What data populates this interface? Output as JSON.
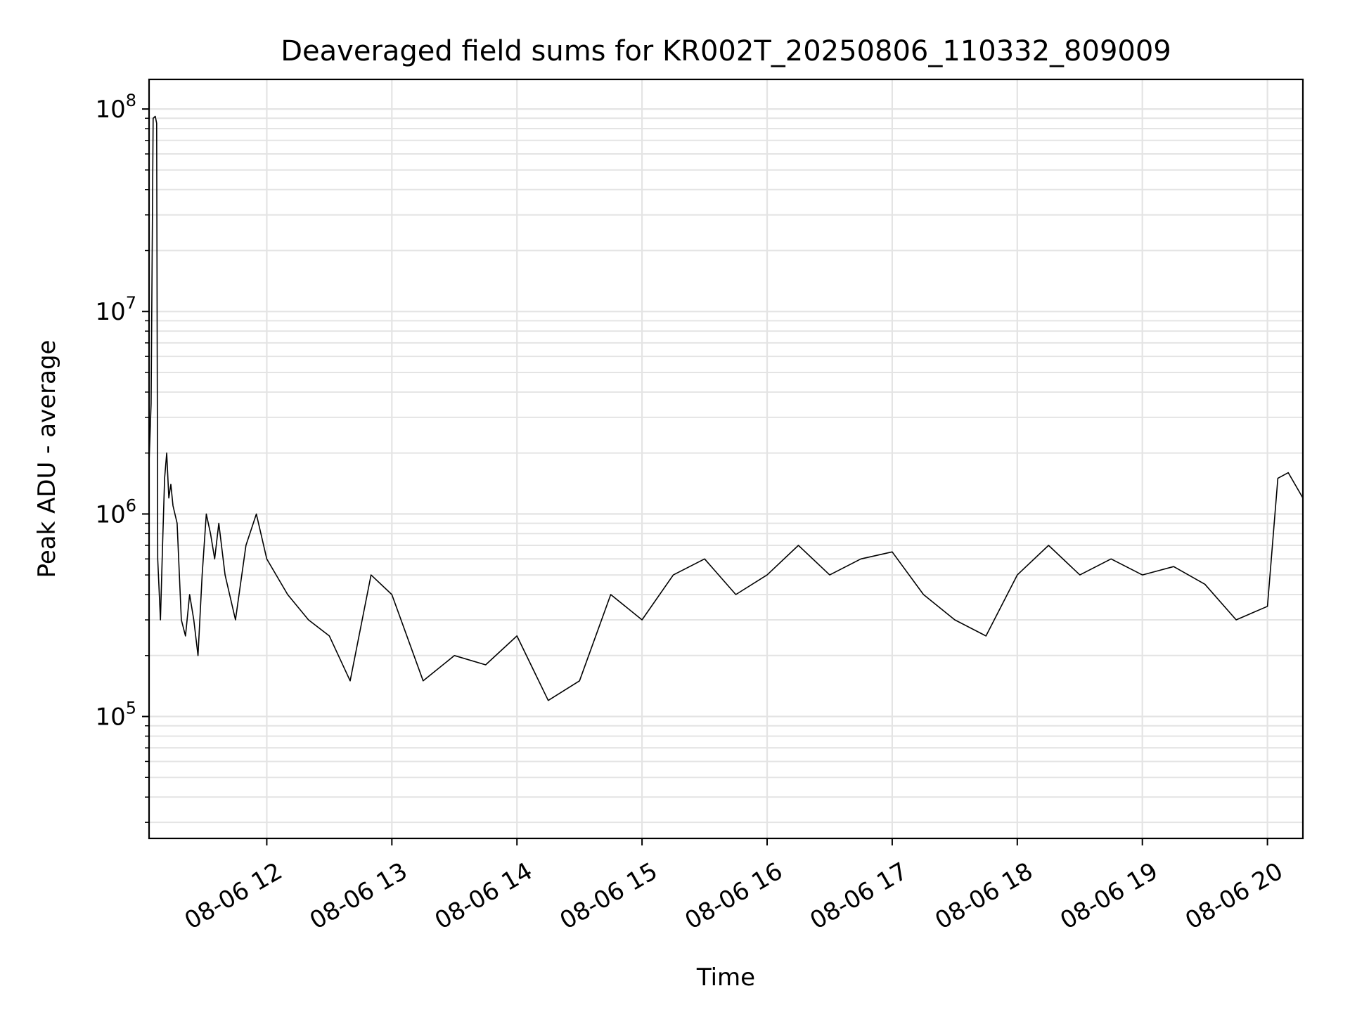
{
  "chart_data": {
    "type": "line",
    "title": "Deaveraged field sums for KR002T_20250806_110332_809009",
    "xlabel": "Time",
    "ylabel": "Peak ADU - average",
    "y_scale": "log",
    "ylim": [
      25000,
      140000000
    ],
    "xlim": [
      "2025-08-06 11:03:32",
      "2025-08-06 20:17:00"
    ],
    "grid": true,
    "line_color": "#000000",
    "x_ticks": [
      {
        "value": "2025-08-06 12:00",
        "label": "08-06 12"
      },
      {
        "value": "2025-08-06 13:00",
        "label": "08-06 13"
      },
      {
        "value": "2025-08-06 14:00",
        "label": "08-06 14"
      },
      {
        "value": "2025-08-06 15:00",
        "label": "08-06 15"
      },
      {
        "value": "2025-08-06 16:00",
        "label": "08-06 16"
      },
      {
        "value": "2025-08-06 17:00",
        "label": "08-06 17"
      },
      {
        "value": "2025-08-06 18:00",
        "label": "08-06 18"
      },
      {
        "value": "2025-08-06 19:00",
        "label": "08-06 19"
      },
      {
        "value": "2025-08-06 20:00",
        "label": "08-06 20"
      }
    ],
    "y_ticks": [
      {
        "value": 100000,
        "base": "10",
        "exp": "5"
      },
      {
        "value": 1000000,
        "base": "10",
        "exp": "6"
      },
      {
        "value": 10000000,
        "base": "10",
        "exp": "7"
      },
      {
        "value": 100000000,
        "base": "10",
        "exp": "8"
      }
    ],
    "series": [
      {
        "x": [
          "2025-08-06 11:03:32",
          "2025-08-06 11:04:30",
          "2025-08-06 11:05:30",
          "2025-08-06 11:06:30",
          "2025-08-06 11:07:10",
          "2025-08-06 11:07:40",
          "2025-08-06 11:09:00",
          "2025-08-06 11:10:00",
          "2025-08-06 11:11:00",
          "2025-08-06 11:12:00",
          "2025-08-06 11:13:00",
          "2025-08-06 11:14:00",
          "2025-08-06 11:15:00",
          "2025-08-06 11:17:00",
          "2025-08-06 11:19:00",
          "2025-08-06 11:21:00",
          "2025-08-06 11:23:00",
          "2025-08-06 11:25:00",
          "2025-08-06 11:27:00",
          "2025-08-06 11:29:00",
          "2025-08-06 11:31:00",
          "2025-08-06 11:33:00",
          "2025-08-06 11:35:00",
          "2025-08-06 11:37:00",
          "2025-08-06 11:40:00",
          "2025-08-06 11:45:00",
          "2025-08-06 11:50:00",
          "2025-08-06 11:55:00",
          "2025-08-06 12:00:00",
          "2025-08-06 12:10:00",
          "2025-08-06 12:20:00",
          "2025-08-06 12:30:00",
          "2025-08-06 12:40:00",
          "2025-08-06 12:50:00",
          "2025-08-06 13:00:00",
          "2025-08-06 13:15:00",
          "2025-08-06 13:30:00",
          "2025-08-06 13:45:00",
          "2025-08-06 14:00:00",
          "2025-08-06 14:15:00",
          "2025-08-06 14:30:00",
          "2025-08-06 14:45:00",
          "2025-08-06 15:00:00",
          "2025-08-06 15:15:00",
          "2025-08-06 15:30:00",
          "2025-08-06 15:45:00",
          "2025-08-06 16:00:00",
          "2025-08-06 16:15:00",
          "2025-08-06 16:30:00",
          "2025-08-06 16:45:00",
          "2025-08-06 17:00:00",
          "2025-08-06 17:15:00",
          "2025-08-06 17:30:00",
          "2025-08-06 17:45:00",
          "2025-08-06 18:00:00",
          "2025-08-06 18:15:00",
          "2025-08-06 18:30:00",
          "2025-08-06 18:45:00",
          "2025-08-06 19:00:00",
          "2025-08-06 19:15:00",
          "2025-08-06 19:30:00",
          "2025-08-06 19:45:00",
          "2025-08-06 20:00:00",
          "2025-08-06 20:05:00",
          "2025-08-06 20:10:00",
          "2025-08-06 20:17:00"
        ],
        "y": [
          1800000,
          3500000,
          90000000,
          92000000,
          85000000,
          600000,
          300000,
          700000,
          1500000,
          2000000,
          1200000,
          1400000,
          1100000,
          900000,
          300000,
          250000,
          400000,
          300000,
          200000,
          500000,
          1000000,
          800000,
          600000,
          900000,
          500000,
          300000,
          700000,
          1000000,
          600000,
          400000,
          300000,
          250000,
          150000,
          500000,
          400000,
          150000,
          200000,
          180000,
          250000,
          120000,
          150000,
          400000,
          300000,
          500000,
          600000,
          400000,
          500000,
          700000,
          500000,
          600000,
          650000,
          400000,
          300000,
          250000,
          500000,
          700000,
          500000,
          600000,
          500000,
          550000,
          450000,
          300000,
          350000,
          1500000,
          1600000,
          1200000
        ]
      }
    ]
  }
}
